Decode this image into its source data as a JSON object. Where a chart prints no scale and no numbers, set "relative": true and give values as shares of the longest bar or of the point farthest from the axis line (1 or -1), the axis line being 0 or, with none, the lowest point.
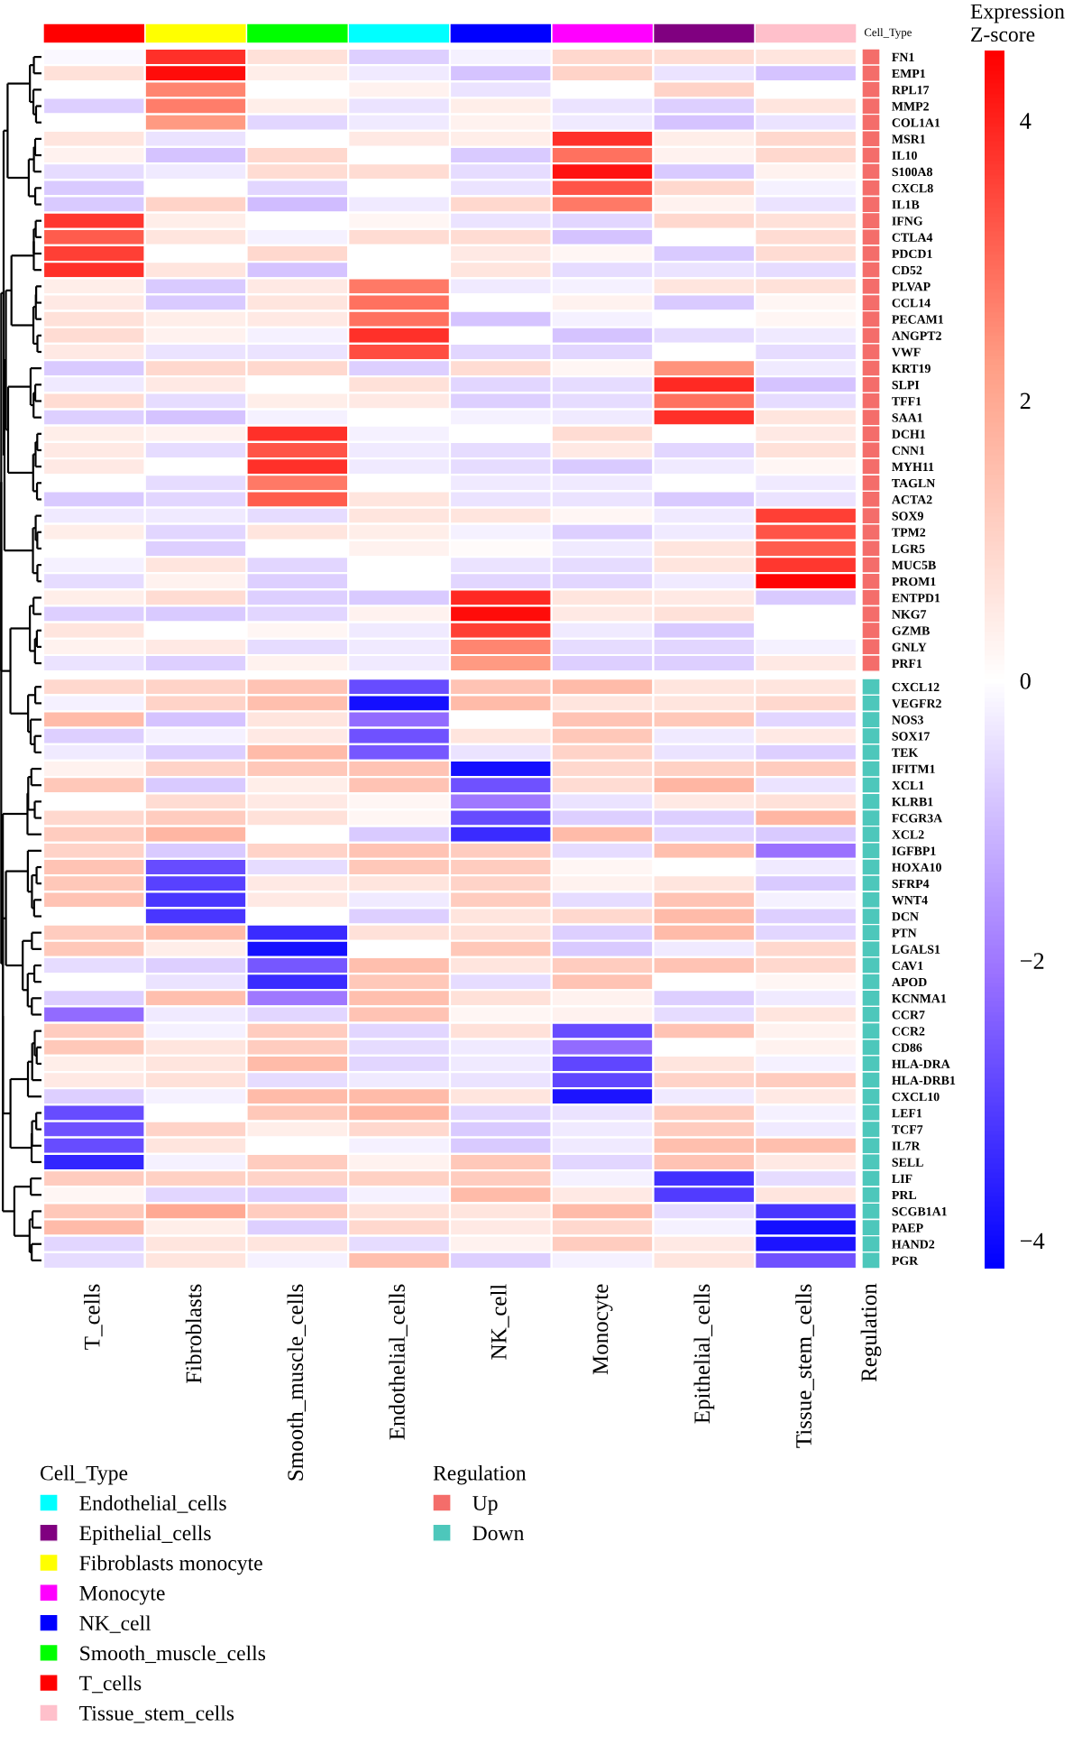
{
  "chart_data": [
    {
      "type": "bar",
      "relative": true,
      "categories": [
        "T_cells",
        "Fibroblasts",
        "Smooth_muscle_cells",
        "Endothelial_cells",
        "NK_cell",
        "Monocyte",
        "Epithelial_cells",
        "Tissue_stem_cells"
      ],
      "series": [
        {
          "name": "Endothelial_cells",
          "color": "#00ffff",
          "values": [
            null,
            null,
            null,
            1,
            null,
            null,
            null,
            null
          ]
        },
        {
          "name": "Epithelial_cells",
          "color": "#800080",
          "values": [
            null,
            null,
            null,
            null,
            null,
            null,
            1,
            null
          ]
        },
        {
          "name": "Fibroblasts monocyte",
          "color": "#ffff00",
          "values": [
            null,
            1,
            null,
            null,
            null,
            null,
            null,
            null
          ]
        },
        {
          "name": "Monocyte",
          "color": "#ff00ff",
          "values": [
            null,
            null,
            null,
            null,
            null,
            1,
            null,
            null
          ]
        },
        {
          "name": "NK_cell",
          "color": "#0000ff",
          "values": [
            null,
            null,
            null,
            null,
            1,
            null,
            null,
            null
          ]
        },
        {
          "name": "Smooth_muscle_cells",
          "color": "#00ff00",
          "values": [
            null,
            null,
            1,
            null,
            null,
            null,
            null,
            null
          ]
        },
        {
          "name": "T_cells",
          "color": "#ff0000",
          "values": [
            1,
            null,
            null,
            null,
            null,
            null,
            null,
            null
          ]
        },
        {
          "name": "Tissue_stem_cells",
          "color": "#ffc0cb",
          "values": [
            null,
            null,
            null,
            null,
            null,
            null,
            null,
            1
          ]
        }
      ],
      "ylabel": "Cell_Type",
      "legend": "bottom left",
      "legend_title": "Cell_Type",
      "tick_labels": false
    },
    {
      "type": "heatmap",
      "categories": [
        "T_cells",
        "Fibroblasts",
        "Smooth_muscle_cells",
        "Endothelial_cells",
        "NK_cell",
        "Monocyte",
        "Epithelial_cells",
        "Tissue_stem_cells"
      ],
      "y_categories": [
        "FN1",
        "EMP1",
        "RPL17",
        "MMP2",
        "COL1A1",
        "MSR1",
        "IL10",
        "S100A8",
        "CXCL8",
        "IL1B",
        "IFNG",
        "CTLA4",
        "PDCD1",
        "CD52",
        "PLVAP",
        "CCL14",
        "PECAM1",
        "ANGPT2",
        "VWF",
        "KRT19",
        "SLPI",
        "TFF1",
        "SAA1",
        "DCH1",
        "CNN1",
        "MYH11",
        "TAGLN",
        "ACTA2",
        "SOX9",
        "TPM2",
        "LGR5",
        "MUC5B",
        "PROM1",
        "ENTPD1",
        "NKG7",
        "GZMB",
        "GNLY",
        "PRF1",
        "CXCL12",
        "VEGFR2",
        "NOS3",
        "SOX17",
        "TEK",
        "IFITM1",
        "XCL1",
        "KLRB1",
        "FCGR3A",
        "XCL2",
        "IGFBP1",
        "HOXA10",
        "SFRP4",
        "WNT4",
        "DCN",
        "PTN",
        "LGALS1",
        "CAV1",
        "APOD",
        "KCNMA1",
        "CCR7",
        "CCR2",
        "CD86",
        "HLA-DRA",
        "HLA-DRB1",
        "CXCL10",
        "LEF1",
        "TCF7",
        "IL7R",
        "SELL",
        "LIF",
        "PRL",
        "SCGB1A1",
        "PAEP",
        "HAND2",
        "PGR"
      ],
      "cells": [
        [
          -0.1,
          3.8,
          0.7,
          -0.7,
          -0.2,
          0.9,
          0.8,
          0.6
        ],
        [
          0.7,
          4.3,
          0.4,
          -0.3,
          -0.9,
          1.0,
          -0.4,
          -0.9
        ],
        [
          0,
          2.6,
          0,
          0.3,
          -0.4,
          0,
          1.0,
          0
        ],
        [
          -0.7,
          2.7,
          0.4,
          -0.4,
          0.4,
          -0.4,
          -0.7,
          0.6
        ],
        [
          0,
          2.3,
          -0.6,
          -0.3,
          0.3,
          -0.3,
          -0.9,
          -0.4
        ],
        [
          0.6,
          -0.4,
          0,
          0.5,
          0.4,
          3.8,
          0.4,
          0.9
        ],
        [
          0.3,
          -0.9,
          0.9,
          0,
          -0.8,
          2.9,
          0.3,
          0.9
        ],
        [
          -0.5,
          -0.3,
          0.8,
          0.8,
          -0.5,
          4.2,
          -0.8,
          0.3
        ],
        [
          -0.8,
          0,
          -0.6,
          0,
          -0.4,
          3.3,
          0.9,
          -0.2
        ],
        [
          -0.8,
          1.0,
          -1.0,
          -0.3,
          0.9,
          2.8,
          0.3,
          -0.4
        ],
        [
          3.7,
          0.4,
          0,
          0.2,
          -0.4,
          -0.6,
          0.9,
          0.7
        ],
        [
          3.2,
          0.6,
          -0.2,
          0.8,
          0.8,
          -0.9,
          0,
          0.8
        ],
        [
          3.6,
          0,
          0.9,
          0,
          0.5,
          0.2,
          -0.8,
          0.8
        ],
        [
          3.8,
          0.6,
          -0.9,
          0,
          0.6,
          -0.5,
          -0.4,
          -0.5
        ],
        [
          0.4,
          -0.8,
          0.5,
          2.8,
          -0.3,
          -0.2,
          0.6,
          0.7
        ],
        [
          0.5,
          -0.8,
          0.6,
          2.9,
          0,
          0.3,
          -0.8,
          0.2
        ],
        [
          0.7,
          0.4,
          0.5,
          2.9,
          -0.9,
          -0.2,
          0,
          0.2
        ],
        [
          0.8,
          0.3,
          -0.2,
          3.8,
          0,
          -0.9,
          -0.5,
          -0.3
        ],
        [
          0.5,
          -0.4,
          -0.4,
          3.4,
          -0.6,
          -0.6,
          0,
          -0.5
        ],
        [
          -0.8,
          0.9,
          0.9,
          -0.7,
          0.8,
          0.2,
          2.4,
          -0.3
        ],
        [
          -0.3,
          0.5,
          0,
          0.7,
          -0.6,
          -0.5,
          3.9,
          -0.9
        ],
        [
          0.8,
          -0.5,
          0.4,
          0.5,
          -0.7,
          -0.5,
          2.9,
          -0.5
        ],
        [
          -0.7,
          -0.9,
          -0.2,
          0,
          -0.2,
          -0.3,
          3.8,
          0.6
        ],
        [
          0.4,
          0.3,
          3.8,
          -0.2,
          0,
          0.8,
          0,
          0.5
        ],
        [
          0.5,
          -0.5,
          3.3,
          -0.3,
          -0.5,
          0.5,
          -0.6,
          0.7
        ],
        [
          0.5,
          0,
          3.8,
          -0.3,
          -0.5,
          -0.8,
          -0.3,
          0.2
        ],
        [
          0,
          -0.5,
          2.8,
          0,
          -0.3,
          -0.3,
          0,
          -0.3
        ],
        [
          -0.8,
          -0.6,
          3.2,
          0.6,
          -0.4,
          -0.4,
          -0.8,
          -0.4
        ],
        [
          -0.3,
          -0.3,
          -0.5,
          0.6,
          0.6,
          0.2,
          -0.3,
          3.6
        ],
        [
          0.4,
          -0.6,
          0.6,
          0.4,
          -0.2,
          -0.7,
          -0.3,
          3.3
        ],
        [
          0,
          -0.7,
          0,
          0.3,
          0.1,
          -0.3,
          0.6,
          3.2
        ],
        [
          -0.2,
          0.6,
          -0.6,
          0,
          -0.4,
          -0.5,
          0.6,
          3.7
        ],
        [
          -0.5,
          0.3,
          -0.7,
          0,
          -0.6,
          -0.6,
          -0.3,
          4.4
        ],
        [
          0.4,
          0.8,
          -0.7,
          -0.8,
          3.9,
          0.6,
          0.5,
          -0.8
        ],
        [
          -0.7,
          -0.8,
          -0.6,
          0.3,
          4.3,
          0.5,
          0.7,
          0
        ],
        [
          0.6,
          0,
          0.2,
          -0.3,
          3.6,
          -0.3,
          -0.8,
          0
        ],
        [
          0.3,
          0.5,
          -0.5,
          -0.3,
          2.6,
          -0.5,
          -0.6,
          -0.2
        ],
        [
          -0.4,
          -0.7,
          0.3,
          -0.3,
          2.3,
          -0.7,
          -0.7,
          0.5
        ],
        [
          0.9,
          1.0,
          1.4,
          -2.8,
          1.4,
          1.6,
          0.6,
          0.6
        ],
        [
          -0.2,
          1.0,
          1.5,
          -3.9,
          1.6,
          0.6,
          0.6,
          0.9
        ],
        [
          1.6,
          -0.9,
          0.6,
          -2.2,
          0,
          1.4,
          1.3,
          -0.6
        ],
        [
          -0.7,
          -0.2,
          0.5,
          -2.7,
          0.6,
          1.3,
          -0.3,
          0.5
        ],
        [
          -0.3,
          -0.7,
          1.6,
          -2.6,
          -0.4,
          1.0,
          -0.4,
          -0.7
        ],
        [
          0.3,
          1.0,
          1.3,
          1.4,
          -3.9,
          0.9,
          1.1,
          1.2
        ],
        [
          1.3,
          -0.8,
          0.4,
          1.4,
          -2.7,
          0.8,
          1.7,
          -0.4
        ],
        [
          0,
          0.8,
          0.5,
          0.2,
          -2.0,
          -0.4,
          0.5,
          0.7
        ],
        [
          0.9,
          1.2,
          0.7,
          0.2,
          -2.8,
          -0.7,
          -0.7,
          1.7
        ],
        [
          1.2,
          1.7,
          0,
          -0.8,
          -3.4,
          1.6,
          -0.6,
          -0.8
        ],
        [
          1.0,
          -0.8,
          1.0,
          1.4,
          1.2,
          -0.5,
          1.5,
          -2.1
        ],
        [
          1.4,
          -2.8,
          -0.5,
          1.3,
          1.2,
          0.2,
          0,
          -0.3
        ],
        [
          1.3,
          -3.0,
          0.5,
          0.6,
          1.0,
          0.3,
          0.6,
          -0.8
        ],
        [
          1.4,
          -3.2,
          0.5,
          -0.3,
          1.2,
          -0.5,
          1.4,
          -0.2
        ],
        [
          0,
          -3.2,
          0,
          -0.7,
          0.6,
          0.9,
          1.6,
          -0.7
        ],
        [
          1.2,
          1.6,
          -3.4,
          0.7,
          0.7,
          -0.7,
          1.6,
          -0.6
        ],
        [
          1.3,
          0.4,
          -3.9,
          0,
          1.3,
          -0.8,
          -0.3,
          0.9
        ],
        [
          -0.5,
          -0.7,
          -2.6,
          1.5,
          0.6,
          1.2,
          1.4,
          0.9
        ],
        [
          0,
          -0.4,
          -3.4,
          1.3,
          -0.5,
          1.4,
          0,
          0.2
        ],
        [
          -0.7,
          1.5,
          -2.0,
          1.5,
          0.7,
          0.3,
          -0.7,
          -0.3
        ],
        [
          -2.2,
          -0.3,
          -0.6,
          1.4,
          0.2,
          0.3,
          -0.5,
          0.6
        ],
        [
          1.2,
          -0.2,
          1.2,
          -0.6,
          0.7,
          -2.8,
          1.4,
          0.3
        ],
        [
          1.3,
          0.6,
          1.2,
          -0.5,
          -0.3,
          -2.2,
          0,
          0.3
        ],
        [
          0.4,
          0.6,
          1.6,
          -0.6,
          -0.3,
          -2.9,
          0.6,
          -0.2
        ],
        [
          0.5,
          0.7,
          -0.5,
          -0.3,
          -0.4,
          -2.9,
          1.0,
          1.2
        ],
        [
          -0.7,
          -0.2,
          1.6,
          1.6,
          0.6,
          -3.8,
          -0.3,
          0.5
        ],
        [
          -2.8,
          0,
          1.3,
          1.7,
          -0.6,
          -0.4,
          1.2,
          -0.2
        ],
        [
          -2.7,
          1.0,
          0.4,
          0.9,
          -0.8,
          -0.3,
          1.2,
          -0.3
        ],
        [
          -2.8,
          0.6,
          0,
          -0.2,
          -0.8,
          -0.3,
          1.5,
          1.5
        ],
        [
          -3.5,
          -0.2,
          1.2,
          0.3,
          1.3,
          -0.6,
          1.4,
          0.5
        ],
        [
          1.2,
          1.1,
          1.0,
          1.1,
          1.2,
          -0.2,
          -3.3,
          -0.5
        ],
        [
          0.2,
          -0.6,
          -0.7,
          -0.2,
          1.6,
          0.5,
          -3.1,
          0.6
        ],
        [
          1.3,
          2.0,
          1.2,
          0.7,
          0.6,
          1.6,
          -0.5,
          -3.2
        ],
        [
          1.6,
          0.4,
          -0.7,
          0.9,
          0.5,
          0.9,
          -0.2,
          -3.9
        ],
        [
          -0.6,
          0.6,
          0.6,
          -0.5,
          0.3,
          1.2,
          0.5,
          -3.8
        ],
        [
          -0.5,
          0.6,
          -0.2,
          1.5,
          -0.7,
          -0.2,
          0.6,
          -2.7
        ]
      ],
      "clim": [
        -4.2,
        4.5
      ],
      "cticks": [
        {
          "value": -4,
          "label": "−4"
        },
        {
          "value": -2,
          "label": "−2"
        },
        0,
        2,
        4
      ],
      "clabel": "Expression Z-score"
    },
    {
      "type": "bar",
      "orientation": "horizontal",
      "relative": true,
      "categories": [
        "FN1",
        "EMP1",
        "RPL17",
        "MMP2",
        "COL1A1",
        "MSR1",
        "IL10",
        "S100A8",
        "CXCL8",
        "IL1B",
        "IFNG",
        "CTLA4",
        "PDCD1",
        "CD52",
        "PLVAP",
        "CCL14",
        "PECAM1",
        "ANGPT2",
        "VWF",
        "KRT19",
        "SLPI",
        "TFF1",
        "SAA1",
        "DCH1",
        "CNN1",
        "MYH11",
        "TAGLN",
        "ACTA2",
        "SOX9",
        "TPM2",
        "LGR5",
        "MUC5B",
        "PROM1",
        "ENTPD1",
        "NKG7",
        "GZMB",
        "GNLY",
        "PRF1",
        "CXCL12",
        "VEGFR2",
        "NOS3",
        "SOX17",
        "TEK",
        "IFITM1",
        "XCL1",
        "KLRB1",
        "FCGR3A",
        "XCL2",
        "IGFBP1",
        "HOXA10",
        "SFRP4",
        "WNT4",
        "DCN",
        "PTN",
        "LGALS1",
        "CAV1",
        "APOD",
        "KCNMA1",
        "CCR7",
        "CCR2",
        "CD86",
        "HLA-DRA",
        "HLA-DRB1",
        "CXCL10",
        "LEF1",
        "TCF7",
        "IL7R",
        "SELL",
        "LIF",
        "PRL",
        "SCGB1A1",
        "PAEP",
        "HAND2",
        "PGR"
      ],
      "series": [
        {
          "name": "Up",
          "color": "#f46d6a",
          "values": [
            1,
            1,
            1,
            1,
            1,
            1,
            1,
            1,
            1,
            1,
            1,
            1,
            1,
            1,
            1,
            1,
            1,
            1,
            1,
            1,
            1,
            1,
            1,
            1,
            1,
            1,
            1,
            1,
            1,
            1,
            1,
            1,
            1,
            1,
            1,
            1,
            1,
            1,
            null,
            null,
            null,
            null,
            null,
            null,
            null,
            null,
            null,
            null,
            null,
            null,
            null,
            null,
            null,
            null,
            null,
            null,
            null,
            null,
            null,
            null,
            null,
            null,
            null,
            null,
            null,
            null,
            null,
            null,
            null,
            null,
            null,
            null,
            null,
            null
          ]
        },
        {
          "name": "Down",
          "color": "#4dc7bb",
          "values": [
            null,
            null,
            null,
            null,
            null,
            null,
            null,
            null,
            null,
            null,
            null,
            null,
            null,
            null,
            null,
            null,
            null,
            null,
            null,
            null,
            null,
            null,
            null,
            null,
            null,
            null,
            null,
            null,
            null,
            null,
            null,
            null,
            null,
            null,
            null,
            null,
            null,
            null,
            1,
            1,
            1,
            1,
            1,
            1,
            1,
            1,
            1,
            1,
            1,
            1,
            1,
            1,
            1,
            1,
            1,
            1,
            1,
            1,
            1,
            1,
            1,
            1,
            1,
            1,
            1,
            1,
            1,
            1,
            1,
            1,
            1,
            1,
            1,
            1
          ]
        }
      ],
      "ylabel": "Regulation",
      "legend": "bottom",
      "legend_title": "Regulation",
      "tick_labels": false
    }
  ]
}
